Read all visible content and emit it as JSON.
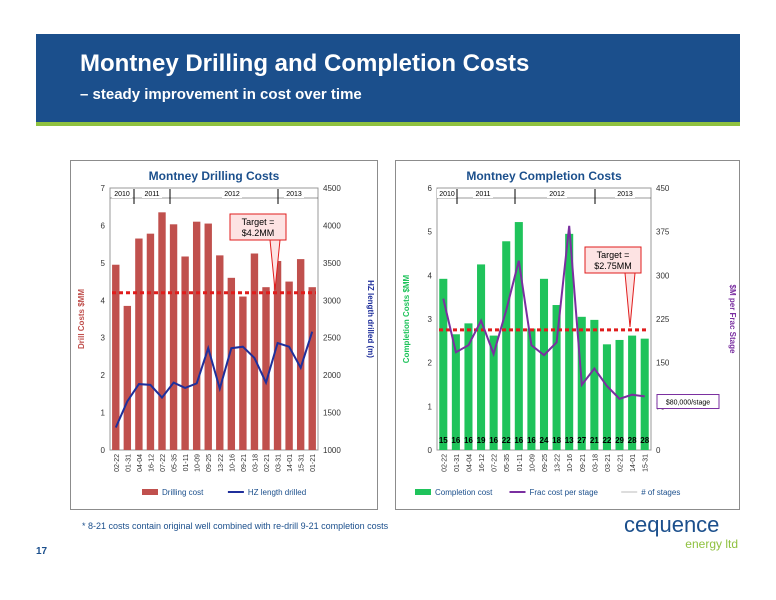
{
  "slide": {
    "title": "Montney Drilling and Completion Costs",
    "subtitle": "– steady improvement in cost over time",
    "footnote": "* 8-21 costs contain original well combined with re-drill 9-21 completion costs",
    "page_number": "17",
    "logo_main": "cequence",
    "logo_sub": "energy ltd",
    "colors": {
      "banner": "#1b4f8c",
      "accent_line": "#8fc13f",
      "drill_bar": "#c0504d",
      "completion_bar": "#1fc35b",
      "hz_line": "#1f2f9b",
      "frac_line": "#7a2fa0",
      "target_line": "#e01c1c"
    }
  },
  "chart_data": [
    {
      "type": "bar",
      "title": "Montney Drilling Costs",
      "categories": [
        "02-22",
        "01-31",
        "04-04",
        "16-12",
        "07-22",
        "05-35",
        "01-11",
        "10-09",
        "09-25",
        "13-22",
        "10-16",
        "09-21",
        "03-18",
        "02-21",
        "03-31",
        "14-01",
        "15-31",
        "01-21"
      ],
      "year_labels": [
        "2010",
        "2011",
        "2012",
        "2013"
      ],
      "ylabel_left": "Drill Costs $MM",
      "ylabel_right": "HZ length drilled (m)",
      "ylim_left": [
        0,
        7
      ],
      "yticks_left": [
        "0",
        "1",
        "2",
        "3",
        "4",
        "5",
        "6",
        "7"
      ],
      "ylim_right": [
        1000,
        4500
      ],
      "yticks_right": [
        "1000",
        "1500",
        "2000",
        "2500",
        "3000",
        "3500",
        "4000",
        "4500"
      ],
      "series": [
        {
          "name": "Drilling cost",
          "axis": "left",
          "values": [
            4.95,
            3.85,
            5.65,
            5.78,
            6.35,
            6.03,
            5.17,
            6.1,
            6.05,
            5.2,
            4.6,
            4.1,
            5.25,
            4.35,
            5.05,
            4.5,
            5.1,
            4.35
          ]
        },
        {
          "name": "HZ length drilled",
          "axis": "right",
          "values": [
            1300,
            1650,
            1880,
            1870,
            1700,
            1900,
            1830,
            1890,
            2360,
            1820,
            2360,
            2380,
            2230,
            1900,
            2430,
            2380,
            2100,
            2580
          ]
        }
      ],
      "target": {
        "value": 4.2,
        "label_line1": "Target =",
        "label_line2": "$4.2MM"
      }
    },
    {
      "type": "bar",
      "title": "Montney Completion Costs",
      "categories": [
        "02-22",
        "01-31",
        "04-04",
        "16-12",
        "07-22",
        "05-35",
        "01-11",
        "10-09",
        "09-25",
        "13-22",
        "10-16",
        "09-21",
        "03-18",
        "03-21",
        "02-21",
        "14-01",
        "15-31"
      ],
      "year_labels": [
        "2010",
        "2011",
        "2012",
        "2013"
      ],
      "ylabel_left": "Completion Costs $MM",
      "ylabel_right": "$M per Frac Stage",
      "ylim_left": [
        0,
        6
      ],
      "yticks_left": [
        "0",
        "1",
        "2",
        "3",
        "4",
        "5",
        "6"
      ],
      "ylim_right": [
        0,
        450
      ],
      "yticks_right": [
        "0",
        "75",
        "150",
        "225",
        "300",
        "375",
        "450"
      ],
      "series": [
        {
          "name": "Completion cost",
          "axis": "left",
          "values": [
            3.92,
            2.65,
            2.9,
            4.25,
            2.62,
            4.78,
            5.22,
            2.78,
            3.92,
            3.32,
            4.95,
            3.05,
            2.98,
            2.42,
            2.52,
            2.62,
            2.55
          ]
        },
        {
          "name": "Frac cost per stage",
          "axis": "right",
          "values": [
            260,
            168,
            180,
            222,
            165,
            240,
            325,
            180,
            163,
            185,
            385,
            112,
            140,
            110,
            88,
            95,
            92
          ]
        },
        {
          "name": "# of stages",
          "values": [
            15,
            16,
            16,
            19,
            16,
            22,
            16,
            16,
            24,
            18,
            13,
            27,
            21,
            22,
            29,
            28,
            28
          ]
        }
      ],
      "target": {
        "value": 2.75,
        "label_line1": "Target =",
        "label_line2": "$2.75MM"
      },
      "annotation": "$80,000/stage"
    }
  ]
}
